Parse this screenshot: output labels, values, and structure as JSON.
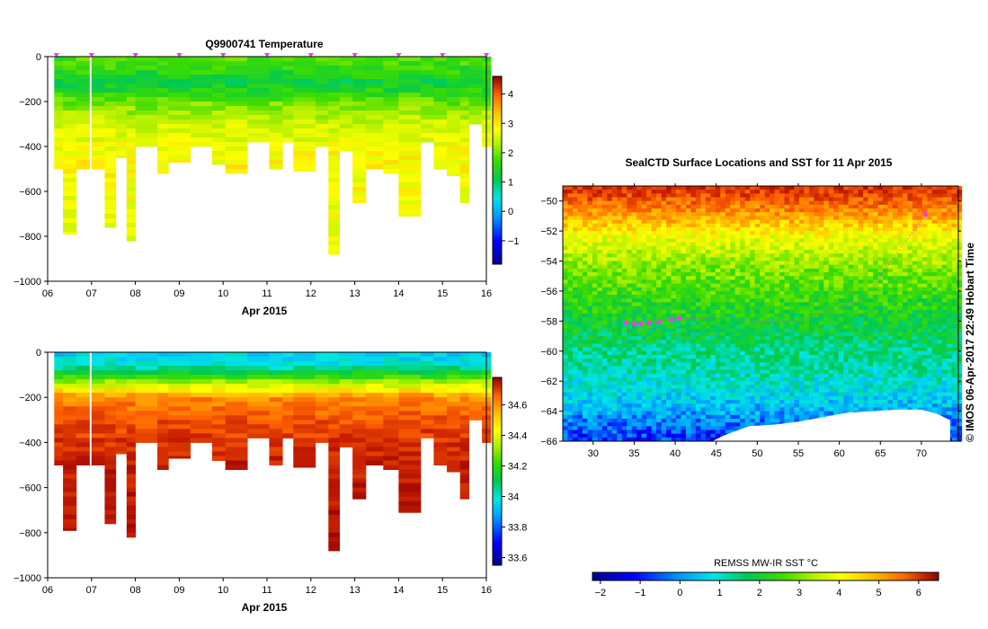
{
  "chart_data": [
    {
      "id": "temp-section",
      "type": "heatmap",
      "title": "Q9900741  Temperature",
      "xlabel": "Apr 2015",
      "ylabel": "",
      "x_ticks": [
        "06",
        "07",
        "08",
        "09",
        "10",
        "11",
        "12",
        "13",
        "14",
        "15",
        "16"
      ],
      "y_ticks": [
        0,
        -200,
        -400,
        -600,
        -800,
        -1000
      ],
      "ylim": [
        -1000,
        0
      ],
      "xlim": [
        6,
        16
      ],
      "colorbar_ticks": [
        "-1",
        "0",
        "1",
        "2",
        "3",
        "4"
      ],
      "colorbar_range": [
        -1.8,
        4.6
      ],
      "surface_markers_x": [
        6.2,
        7.0,
        8.0,
        9.0,
        10.0,
        11.0,
        12.0,
        13.0,
        14.0,
        15.0,
        16.0
      ],
      "profiles": [
        {
          "x": 6.15,
          "w": 0.2,
          "maxdepth": 500
        },
        {
          "x": 6.35,
          "w": 0.3,
          "maxdepth": 790
        },
        {
          "x": 6.65,
          "w": 0.3,
          "maxdepth": 500
        },
        {
          "x": 7.0,
          "w": 0.3,
          "maxdepth": 500
        },
        {
          "x": 7.3,
          "w": 0.25,
          "maxdepth": 760
        },
        {
          "x": 7.55,
          "w": 0.25,
          "maxdepth": 450
        },
        {
          "x": 7.8,
          "w": 0.2,
          "maxdepth": 820
        },
        {
          "x": 8.0,
          "w": 0.5,
          "maxdepth": 400
        },
        {
          "x": 8.5,
          "w": 0.25,
          "maxdepth": 520
        },
        {
          "x": 8.75,
          "w": 0.5,
          "maxdepth": 470
        },
        {
          "x": 9.25,
          "w": 0.5,
          "maxdepth": 400
        },
        {
          "x": 9.75,
          "w": 0.3,
          "maxdepth": 480
        },
        {
          "x": 10.05,
          "w": 0.5,
          "maxdepth": 520
        },
        {
          "x": 10.55,
          "w": 0.5,
          "maxdepth": 380
        },
        {
          "x": 11.05,
          "w": 0.3,
          "maxdepth": 500
        },
        {
          "x": 11.35,
          "w": 0.25,
          "maxdepth": 380
        },
        {
          "x": 11.6,
          "w": 0.5,
          "maxdepth": 510
        },
        {
          "x": 12.1,
          "w": 0.3,
          "maxdepth": 400
        },
        {
          "x": 12.4,
          "w": 0.25,
          "maxdepth": 880
        },
        {
          "x": 12.65,
          "w": 0.3,
          "maxdepth": 420
        },
        {
          "x": 12.95,
          "w": 0.3,
          "maxdepth": 650
        },
        {
          "x": 13.25,
          "w": 0.4,
          "maxdepth": 500
        },
        {
          "x": 13.65,
          "w": 0.35,
          "maxdepth": 520
        },
        {
          "x": 14.0,
          "w": 0.5,
          "maxdepth": 710
        },
        {
          "x": 14.5,
          "w": 0.3,
          "maxdepth": 380
        },
        {
          "x": 14.8,
          "w": 0.3,
          "maxdepth": 500
        },
        {
          "x": 15.1,
          "w": 0.3,
          "maxdepth": 530
        },
        {
          "x": 15.4,
          "w": 0.2,
          "maxdepth": 650
        },
        {
          "x": 15.6,
          "w": 0.3,
          "maxdepth": 300
        },
        {
          "x": 15.9,
          "w": 0.2,
          "maxdepth": 400
        }
      ],
      "vertical_profile_celsius": [
        {
          "depth": 0,
          "value": 1.2
        },
        {
          "depth": 60,
          "value": 1.0
        },
        {
          "depth": 120,
          "value": 0.6
        },
        {
          "depth": 200,
          "value": 1.3
        },
        {
          "depth": 300,
          "value": 1.9
        },
        {
          "depth": 450,
          "value": 2.3
        },
        {
          "depth": 800,
          "value": 2.1
        }
      ]
    },
    {
      "id": "salinity-section",
      "type": "heatmap",
      "title": "",
      "xlabel": "Apr 2015",
      "ylabel": "",
      "x_ticks": [
        "06",
        "07",
        "08",
        "09",
        "10",
        "11",
        "12",
        "13",
        "14",
        "15",
        "16"
      ],
      "y_ticks": [
        0,
        -200,
        -400,
        -600,
        -800,
        -1000
      ],
      "ylim": [
        -1000,
        0
      ],
      "xlim": [
        6,
        16
      ],
      "colorbar_ticks": [
        "33.6",
        "33.8",
        "34",
        "34.2",
        "34.4",
        "34.6"
      ],
      "colorbar_range": [
        33.55,
        34.78
      ],
      "vertical_profile_salinity": [
        {
          "depth": 0,
          "value": 33.85
        },
        {
          "depth": 60,
          "value": 33.9
        },
        {
          "depth": 120,
          "value": 34.15
        },
        {
          "depth": 200,
          "value": 34.5
        },
        {
          "depth": 320,
          "value": 34.6
        },
        {
          "depth": 500,
          "value": 34.68
        },
        {
          "depth": 900,
          "value": 34.72
        }
      ]
    },
    {
      "id": "sst-map",
      "type": "heatmap",
      "title": "SealCTD Surface Locations and SST for 11 Apr 2015",
      "xlabel": "",
      "ylabel": "",
      "x_ticks": [
        "30",
        "35",
        "40",
        "45",
        "50",
        "55",
        "60",
        "65",
        "70"
      ],
      "y_ticks": [
        "-50",
        "-52",
        "-54",
        "-56",
        "-58",
        "-60",
        "-62",
        "-64",
        "-66"
      ],
      "xlim": [
        26.3,
        74.5
      ],
      "ylim": [
        -66,
        -49
      ],
      "colorbar_label": "REMSS MW-IR SST °C",
      "colorbar_ticks": [
        "-2",
        "-1",
        "0",
        "1",
        "2",
        "3",
        "4",
        "5",
        "6"
      ],
      "colorbar_range": [
        -2.2,
        6.5
      ],
      "sst_by_latitude": [
        {
          "lat": -49.2,
          "value": 5.5
        },
        {
          "lat": -51,
          "value": 4.3
        },
        {
          "lat": -52.5,
          "value": 3.1
        },
        {
          "lat": -54.5,
          "value": 2.2
        },
        {
          "lat": -56.5,
          "value": 1.6
        },
        {
          "lat": -58.5,
          "value": 1.1
        },
        {
          "lat": -60.5,
          "value": 0.6
        },
        {
          "lat": -62.5,
          "value": 0.2
        },
        {
          "lat": -64.5,
          "value": -0.6
        },
        {
          "lat": -66,
          "value": -1.2
        }
      ],
      "track_points": [
        {
          "lon": 34.0,
          "lat": -58.1
        },
        {
          "lon": 35.0,
          "lat": -58.2
        },
        {
          "lon": 35.8,
          "lat": -58.2
        },
        {
          "lon": 36.8,
          "lat": -58.1
        },
        {
          "lon": 38.0,
          "lat": -58.05
        },
        {
          "lon": 39.5,
          "lat": -57.9
        },
        {
          "lon": 40.5,
          "lat": -57.8
        },
        {
          "lon": 70.5,
          "lat": -50.9
        }
      ],
      "side_caption": "© IMOS 06-Apr-2017 22:49 Hobart Time"
    }
  ],
  "colors": {
    "temp_scale": [
      "#00008b",
      "#0000ff",
      "#0096ff",
      "#00e6e6",
      "#00c850",
      "#3cdc00",
      "#b4f000",
      "#ffff00",
      "#ffb400",
      "#ff6400",
      "#c81e00",
      "#8b0000"
    ],
    "marker": "#ff33ff",
    "land": "#ffffff"
  }
}
